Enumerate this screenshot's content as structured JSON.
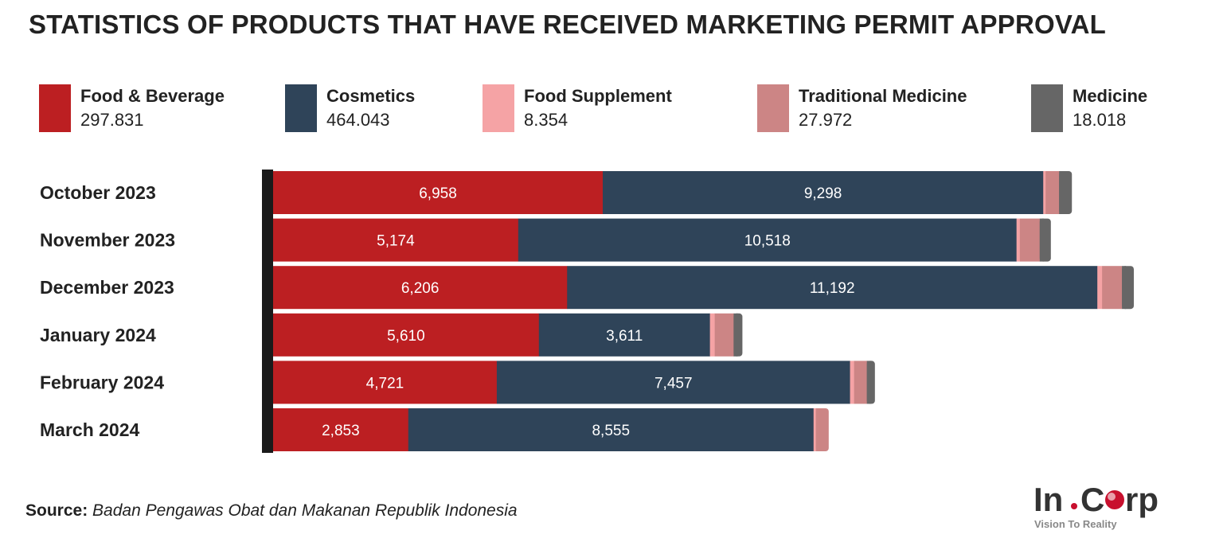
{
  "title": "STATISTICS OF PRODUCTS THAT HAVE RECEIVED MARKETING PERMIT APPROVAL",
  "legend": [
    {
      "name": "Food & Beverage",
      "total": "297.831",
      "color": "#BC1F22"
    },
    {
      "name": "Cosmetics",
      "total": "464.043",
      "color": "#2F4459"
    },
    {
      "name": "Food Supplement",
      "total": "8.354",
      "color": "#F5A3A5"
    },
    {
      "name": "Traditional Medicine",
      "total": "27.972",
      "color": "#CC8585"
    },
    {
      "name": "Medicine",
      "total": "18.018",
      "color": "#666666"
    }
  ],
  "chart_data": {
    "type": "bar",
    "orientation": "horizontal",
    "stacked": true,
    "categories": [
      "October 2023",
      "November 2023",
      "December 2023",
      "January 2024",
      "February 2024",
      "March 2024"
    ],
    "series": [
      {
        "name": "Food & Beverage",
        "values": [
          6958,
          5174,
          6206,
          5610,
          4721,
          2853
        ],
        "labels": [
          "6,958",
          "5,174",
          "6,206",
          "5,610",
          "4,721",
          "2,853"
        ],
        "color": "#BC1F22"
      },
      {
        "name": "Cosmetics",
        "values": [
          9298,
          10518,
          11192,
          3611,
          7457,
          8555
        ],
        "labels": [
          "9,298",
          "10,518",
          "11,192",
          "3,611",
          "7,457",
          "8,555"
        ],
        "color": "#2F4459"
      },
      {
        "name": "Food Supplement",
        "values": [
          50,
          70,
          100,
          100,
          85,
          50
        ],
        "color": "#F5A3A5"
      },
      {
        "name": "Traditional Medicine",
        "values": [
          285,
          420,
          420,
          400,
          270,
          270
        ],
        "color": "#CC8585"
      },
      {
        "name": "Medicine",
        "values": [
          270,
          235,
          250,
          185,
          170,
          0
        ],
        "color": "#666666"
      }
    ],
    "grid": false,
    "legend_position": "top"
  },
  "source": {
    "label": "Source:",
    "text": "Badan Pengawas Obat dan Makanan Republik Indonesia"
  },
  "logo": {
    "text_left": "In",
    "text_right": "Crp",
    "tagline": "Vision To Reality"
  }
}
